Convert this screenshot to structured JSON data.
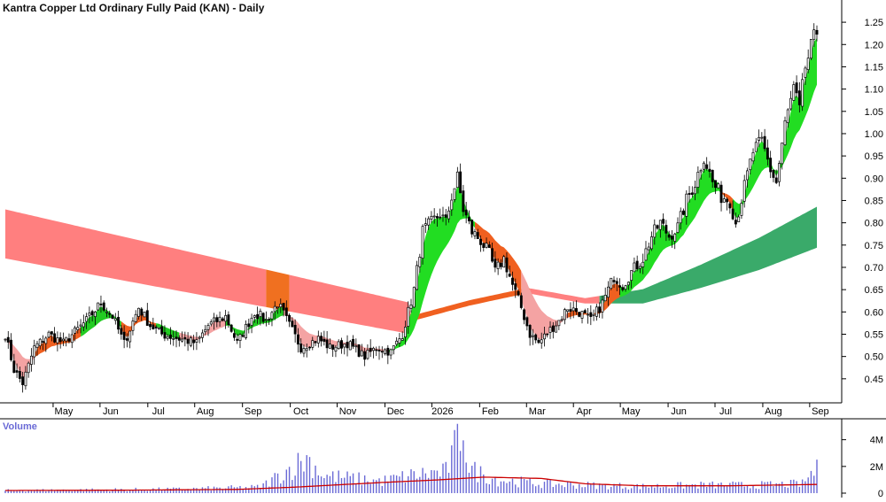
{
  "title": "Kantra Copper Ltd Ordinary Fully Paid (KAN) - Daily",
  "chart_data": [
    {
      "type": "line",
      "subtype": "candlestick-ohlc",
      "title": "Kantra Copper Ltd Ordinary Fully Paid (KAN) - Daily",
      "ylim": [
        0.4,
        1.28
      ],
      "y_ticks": [
        "1.25",
        "1.20",
        "1.15",
        "1.10",
        "1.05",
        "1.00",
        "0.95",
        "0.90",
        "0.85",
        "0.80",
        "0.75",
        "0.70",
        "0.65",
        "0.60",
        "0.55",
        "0.50",
        "0.45"
      ],
      "x_ticks": [
        "May",
        "Jun",
        "Jul",
        "Aug",
        "Sep",
        "Oct",
        "Nov",
        "Dec",
        "2026",
        "Feb",
        "Mar",
        "Apr",
        "May",
        "Jun",
        "Jul",
        "Aug",
        "Sep"
      ],
      "grid": false,
      "price_anchors": [
        [
          0,
          0.55
        ],
        [
          3,
          0.47
        ],
        [
          6,
          0.44
        ],
        [
          10,
          0.52
        ],
        [
          15,
          0.55
        ],
        [
          20,
          0.53
        ],
        [
          28,
          0.58
        ],
        [
          33,
          0.62
        ],
        [
          37,
          0.59
        ],
        [
          41,
          0.53
        ],
        [
          46,
          0.61
        ],
        [
          50,
          0.57
        ],
        [
          54,
          0.55
        ],
        [
          60,
          0.54
        ],
        [
          66,
          0.53
        ],
        [
          70,
          0.57
        ],
        [
          76,
          0.59
        ],
        [
          80,
          0.53
        ],
        [
          86,
          0.6
        ],
        [
          90,
          0.58
        ],
        [
          94,
          0.62
        ],
        [
          98,
          0.57
        ],
        [
          102,
          0.52
        ],
        [
          108,
          0.54
        ],
        [
          112,
          0.52
        ],
        [
          118,
          0.53
        ],
        [
          124,
          0.5
        ],
        [
          128,
          0.52
        ],
        [
          133,
          0.51
        ],
        [
          137,
          0.55
        ],
        [
          141,
          0.65
        ],
        [
          144,
          0.78
        ],
        [
          147,
          0.8
        ],
        [
          150,
          0.82
        ],
        [
          152,
          0.8
        ],
        [
          154,
          0.86
        ],
        [
          156,
          0.9
        ],
        [
          158,
          0.83
        ],
        [
          161,
          0.78
        ],
        [
          164,
          0.76
        ],
        [
          167,
          0.73
        ],
        [
          169,
          0.69
        ],
        [
          172,
          0.72
        ],
        [
          175,
          0.66
        ],
        [
          178,
          0.61
        ],
        [
          181,
          0.55
        ],
        [
          184,
          0.53
        ],
        [
          188,
          0.56
        ],
        [
          191,
          0.58
        ],
        [
          194,
          0.61
        ],
        [
          198,
          0.6
        ],
        [
          202,
          0.58
        ],
        [
          206,
          0.62
        ],
        [
          210,
          0.68
        ],
        [
          213,
          0.66
        ],
        [
          216,
          0.69
        ],
        [
          220,
          0.72
        ],
        [
          223,
          0.77
        ],
        [
          226,
          0.8
        ],
        [
          229,
          0.77
        ],
        [
          232,
          0.79
        ],
        [
          235,
          0.85
        ],
        [
          238,
          0.89
        ],
        [
          241,
          0.95
        ],
        [
          244,
          0.89
        ],
        [
          247,
          0.86
        ],
        [
          250,
          0.85
        ],
        [
          252,
          0.8
        ],
        [
          255,
          0.88
        ],
        [
          258,
          0.96
        ],
        [
          261,
          0.98
        ],
        [
          264,
          0.92
        ],
        [
          266,
          0.89
        ],
        [
          269,
          1.02
        ],
        [
          272,
          1.1
        ],
        [
          274,
          1.05
        ],
        [
          276,
          1.15
        ],
        [
          278,
          1.19
        ],
        [
          280,
          1.23
        ]
      ],
      "volume_panel": {
        "label": "Volume",
        "ylim": [
          0,
          5500000
        ],
        "y_ticks": [
          "4M",
          "2M",
          "0"
        ],
        "volume_anchors": [
          [
            0,
            200000
          ],
          [
            30,
            250000
          ],
          [
            60,
            300000
          ],
          [
            88,
            450000
          ],
          [
            98,
            1800000
          ],
          [
            104,
            2600000
          ],
          [
            110,
            1300000
          ],
          [
            130,
            900000
          ],
          [
            142,
            1400000
          ],
          [
            152,
            1600000
          ],
          [
            156,
            3800000
          ],
          [
            158,
            5500000
          ],
          [
            160,
            1800000
          ],
          [
            170,
            1000000
          ],
          [
            185,
            700000
          ],
          [
            200,
            600000
          ],
          [
            220,
            500000
          ],
          [
            240,
            600000
          ],
          [
            260,
            600000
          ],
          [
            275,
            700000
          ],
          [
            279,
            1700000
          ]
        ],
        "average_anchors": [
          [
            0,
            200000
          ],
          [
            40,
            220000
          ],
          [
            80,
            280000
          ],
          [
            100,
            450000
          ],
          [
            130,
            800000
          ],
          [
            150,
            1000000
          ],
          [
            165,
            1200000
          ],
          [
            185,
            1100000
          ],
          [
            200,
            700000
          ],
          [
            220,
            550000
          ],
          [
            250,
            550000
          ],
          [
            280,
            650000
          ]
        ]
      },
      "overlays": [
        {
          "kind": "short-term-band",
          "segments": [
            {
              "from": 0,
              "to": 10,
              "color": "#f4a3a3"
            },
            {
              "from": 10,
              "to": 26,
              "color": "#f06020"
            },
            {
              "from": 26,
              "to": 40,
              "color": "#22cc22"
            },
            {
              "from": 40,
              "to": 52,
              "color": "#f06020"
            },
            {
              "from": 52,
              "to": 60,
              "color": "#22cc22"
            },
            {
              "from": 60,
              "to": 76,
              "color": "#f4a3a3"
            },
            {
              "from": 76,
              "to": 96,
              "color": "#22cc22"
            },
            {
              "from": 96,
              "to": 132,
              "color": "#f4a3a3"
            },
            {
              "from": 132,
              "to": 162,
              "color": "#22dd22"
            },
            {
              "from": 162,
              "to": 178,
              "color": "#f06020"
            },
            {
              "from": 178,
              "to": 194,
              "color": "#f4a3a3"
            },
            {
              "from": 194,
              "to": 212,
              "color": "#f06020"
            },
            {
              "from": 212,
              "to": 247,
              "color": "#22dd22"
            },
            {
              "from": 247,
              "to": 251,
              "color": "#f06020"
            },
            {
              "from": 251,
              "to": 281,
              "color": "#22dd22"
            }
          ]
        },
        {
          "kind": "long-term-band",
          "segments": [
            {
              "from": 0,
              "to": 90,
              "color": "#ff7f7f"
            },
            {
              "from": 90,
              "to": 98,
              "color": "#f07020"
            },
            {
              "from": 98,
              "to": 142,
              "color": "#ff7f7f"
            },
            {
              "from": 142,
              "to": 181,
              "color": "#f06020"
            },
            {
              "from": 181,
              "to": 205,
              "color": "#ff8080"
            },
            {
              "from": 205,
              "to": 281,
              "color": "#3aaa6a"
            }
          ]
        }
      ]
    }
  ]
}
